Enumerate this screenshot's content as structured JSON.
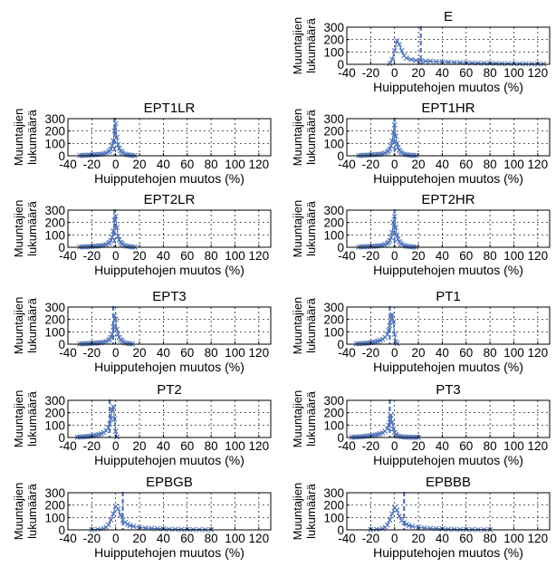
{
  "chart_data": [
    {
      "type": "line",
      "title": "E",
      "xlabel": "Huipputehojen muutos (%)",
      "ylabel_lines": [
        "Muuntajien",
        "lukumäärä"
      ],
      "xlim": [
        -40,
        130
      ],
      "ylim": [
        0,
        300
      ],
      "xticks": [
        -40,
        -20,
        0,
        20,
        40,
        60,
        80,
        100,
        120
      ],
      "yticks": [
        0,
        100,
        200,
        300
      ],
      "grid": true,
      "mean_line_x": 22,
      "series": [
        {
          "marker": "x",
          "x": [
            -4,
            -2,
            0,
            2,
            4,
            6,
            8,
            10,
            14,
            18,
            22,
            26,
            30,
            35,
            40,
            45,
            50,
            55,
            60,
            65,
            70,
            75,
            80,
            85,
            90,
            95,
            100,
            105,
            110,
            115,
            120,
            125
          ],
          "values": [
            5,
            40,
            110,
            190,
            160,
            110,
            70,
            50,
            38,
            32,
            28,
            25,
            25,
            22,
            20,
            18,
            16,
            14,
            12,
            11,
            10,
            9,
            8,
            7,
            6,
            6,
            5,
            5,
            4,
            4,
            3,
            3
          ]
        }
      ]
    },
    {
      "type": "line",
      "title": "EPT1LR",
      "xlabel": "Huipputehojen muutos (%)",
      "ylabel_lines": [
        "Muuntajien",
        "lukumäärä"
      ],
      "xlim": [
        -40,
        130
      ],
      "ylim": [
        0,
        300
      ],
      "xticks": [
        -40,
        -20,
        0,
        20,
        40,
        60,
        80,
        100,
        120
      ],
      "yticks": [
        0,
        100,
        200,
        300
      ],
      "grid": true,
      "mean_line_x": -1,
      "series": [
        {
          "marker": "x",
          "x": [
            -30,
            -28,
            -26,
            -24,
            -22,
            -20,
            -18,
            -16,
            -14,
            -12,
            -10,
            -8,
            -6,
            -5,
            -4,
            -3,
            -2,
            -1,
            0,
            1,
            2,
            3,
            4,
            5,
            6,
            8,
            10,
            12,
            14,
            16
          ],
          "values": [
            2,
            3,
            4,
            5,
            6,
            7,
            8,
            9,
            11,
            13,
            16,
            22,
            30,
            40,
            55,
            80,
            120,
            200,
            260,
            150,
            90,
            60,
            40,
            30,
            20,
            12,
            8,
            5,
            3,
            2
          ]
        }
      ]
    },
    {
      "type": "line",
      "title": "EPT1HR",
      "xlabel": "Huipputehojen muutos (%)",
      "ylabel_lines": [
        "Muuntajien",
        "lukumäärä"
      ],
      "xlim": [
        -40,
        130
      ],
      "ylim": [
        0,
        300
      ],
      "xticks": [
        -40,
        -20,
        0,
        20,
        40,
        60,
        80,
        100,
        120
      ],
      "yticks": [
        0,
        100,
        200,
        300
      ],
      "grid": true,
      "mean_line_x": 0,
      "series": [
        {
          "marker": "x",
          "x": [
            -30,
            -28,
            -26,
            -24,
            -22,
            -20,
            -18,
            -16,
            -14,
            -12,
            -10,
            -8,
            -6,
            -5,
            -4,
            -3,
            -2,
            -1,
            0,
            1,
            2,
            3,
            4,
            5,
            6,
            8,
            10,
            12,
            14,
            16,
            18
          ],
          "values": [
            2,
            3,
            4,
            5,
            6,
            7,
            8,
            9,
            11,
            13,
            16,
            22,
            30,
            40,
            55,
            80,
            120,
            190,
            250,
            160,
            100,
            65,
            45,
            32,
            22,
            14,
            9,
            6,
            4,
            3,
            2
          ]
        }
      ]
    },
    {
      "type": "line",
      "title": "EPT2LR",
      "xlabel": "Huipputehojen muutos (%)",
      "ylabel_lines": [
        "Muuntajien",
        "lukumäärä"
      ],
      "xlim": [
        -40,
        130
      ],
      "ylim": [
        0,
        300
      ],
      "xticks": [
        -40,
        -20,
        0,
        20,
        40,
        60,
        80,
        100,
        120
      ],
      "yticks": [
        0,
        100,
        200,
        300
      ],
      "grid": true,
      "mean_line_x": -1,
      "series": [
        {
          "marker": "x",
          "x": [
            -30,
            -28,
            -26,
            -24,
            -22,
            -20,
            -18,
            -16,
            -14,
            -12,
            -10,
            -8,
            -6,
            -5,
            -4,
            -3,
            -2,
            -1,
            0,
            1,
            2,
            3,
            4,
            5,
            6,
            8,
            10,
            12,
            14,
            16
          ],
          "values": [
            2,
            3,
            4,
            5,
            6,
            7,
            8,
            9,
            11,
            13,
            16,
            22,
            30,
            40,
            55,
            80,
            130,
            220,
            250,
            160,
            90,
            60,
            40,
            30,
            20,
            12,
            8,
            5,
            3,
            2
          ]
        }
      ]
    },
    {
      "type": "line",
      "title": "EPT2HR",
      "xlabel": "Huipputehojen muutos (%)",
      "ylabel_lines": [
        "Muuntajien",
        "lukumäärä"
      ],
      "xlim": [
        -40,
        130
      ],
      "ylim": [
        0,
        300
      ],
      "xticks": [
        -40,
        -20,
        0,
        20,
        40,
        60,
        80,
        100,
        120
      ],
      "yticks": [
        0,
        100,
        200,
        300
      ],
      "grid": true,
      "mean_line_x": 0,
      "series": [
        {
          "marker": "x",
          "x": [
            -30,
            -28,
            -26,
            -24,
            -22,
            -20,
            -18,
            -16,
            -14,
            -12,
            -10,
            -8,
            -6,
            -5,
            -4,
            -3,
            -2,
            -1,
            0,
            1,
            2,
            3,
            4,
            5,
            6,
            8,
            10,
            12,
            14,
            16,
            18
          ],
          "values": [
            2,
            3,
            4,
            5,
            6,
            7,
            8,
            9,
            11,
            13,
            16,
            22,
            30,
            40,
            55,
            80,
            120,
            200,
            250,
            160,
            100,
            65,
            45,
            32,
            22,
            14,
            9,
            6,
            4,
            3,
            2
          ]
        }
      ]
    },
    {
      "type": "line",
      "title": "EPT3",
      "xlabel": "Huipputehojen muutos (%)",
      "ylabel_lines": [
        "Muuntajien",
        "lukumäärä"
      ],
      "xlim": [
        -40,
        130
      ],
      "ylim": [
        0,
        300
      ],
      "xticks": [
        -40,
        -20,
        0,
        20,
        40,
        60,
        80,
        100,
        120
      ],
      "yticks": [
        0,
        100,
        200,
        300
      ],
      "grid": true,
      "mean_line_x": -2,
      "series": [
        {
          "marker": "x",
          "x": [
            -30,
            -28,
            -26,
            -24,
            -22,
            -20,
            -18,
            -16,
            -14,
            -12,
            -10,
            -8,
            -6,
            -5,
            -4,
            -3,
            -2,
            -1,
            0,
            1,
            2,
            3,
            4,
            5,
            6,
            8,
            10,
            12,
            14
          ],
          "values": [
            2,
            3,
            4,
            5,
            6,
            7,
            8,
            9,
            11,
            13,
            16,
            22,
            30,
            40,
            55,
            80,
            140,
            230,
            200,
            120,
            80,
            55,
            38,
            28,
            18,
            10,
            6,
            4,
            2
          ]
        }
      ]
    },
    {
      "type": "line",
      "title": "PT1",
      "xlabel": "Huipputehojen muutos (%)",
      "ylabel_lines": [
        "Muuntajien",
        "lukumäärä"
      ],
      "xlim": [
        -40,
        130
      ],
      "ylim": [
        0,
        300
      ],
      "xticks": [
        -40,
        -20,
        0,
        20,
        40,
        60,
        80,
        100,
        120
      ],
      "yticks": [
        0,
        100,
        200,
        300
      ],
      "grid": true,
      "mean_line_x": -4,
      "series": [
        {
          "marker": "x",
          "x": [
            -32,
            -30,
            -28,
            -26,
            -24,
            -22,
            -20,
            -18,
            -16,
            -14,
            -12,
            -10,
            -8,
            -6,
            -5,
            -4,
            -3,
            -2,
            -1,
            0,
            1,
            2
          ],
          "values": [
            3,
            4,
            5,
            6,
            8,
            10,
            12,
            15,
            19,
            24,
            30,
            40,
            55,
            80,
            110,
            150,
            200,
            240,
            180,
            80,
            20,
            5
          ]
        }
      ]
    },
    {
      "type": "line",
      "title": "PT2",
      "xlabel": "Huipputehojen muutos (%)",
      "ylabel_lines": [
        "Muuntajien",
        "lukumäärä"
      ],
      "xlim": [
        -40,
        130
      ],
      "ylim": [
        0,
        300
      ],
      "xticks": [
        -40,
        -20,
        0,
        20,
        40,
        60,
        80,
        100,
        120
      ],
      "yticks": [
        0,
        100,
        200,
        300
      ],
      "grid": true,
      "mean_line_x": -5,
      "series": [
        {
          "marker": "x",
          "x": [
            -32,
            -30,
            -28,
            -26,
            -24,
            -22,
            -20,
            -18,
            -16,
            -14,
            -12,
            -10,
            -8,
            -6,
            -5,
            -4,
            -3,
            -2,
            -1,
            0,
            1
          ],
          "values": [
            3,
            4,
            5,
            6,
            8,
            10,
            12,
            15,
            19,
            24,
            30,
            40,
            55,
            80,
            110,
            150,
            220,
            250,
            150,
            50,
            5
          ]
        }
      ]
    },
    {
      "type": "line",
      "title": "PT3",
      "xlabel": "Huipputehojen muutos (%)",
      "ylabel_lines": [
        "Muuntajien",
        "lukumäärä"
      ],
      "xlim": [
        -40,
        130
      ],
      "ylim": [
        0,
        300
      ],
      "xticks": [
        -40,
        -20,
        0,
        20,
        40,
        60,
        80,
        100,
        120
      ],
      "yticks": [
        0,
        100,
        200,
        300
      ],
      "grid": true,
      "mean_line_x": -4,
      "series": [
        {
          "marker": "x",
          "x": [
            -36,
            -34,
            -32,
            -30,
            -28,
            -26,
            -24,
            -22,
            -20,
            -18,
            -16,
            -14,
            -12,
            -10,
            -8,
            -6,
            -5,
            -4,
            -3,
            -2,
            -1,
            0,
            1,
            2,
            4,
            6,
            8,
            10,
            12,
            14,
            16,
            18,
            20
          ],
          "values": [
            2,
            3,
            4,
            5,
            6,
            8,
            10,
            12,
            14,
            17,
            20,
            24,
            30,
            38,
            50,
            70,
            100,
            150,
            180,
            120,
            70,
            40,
            25,
            15,
            10,
            6,
            4,
            3,
            2,
            2,
            1,
            1,
            1
          ]
        }
      ]
    },
    {
      "type": "line",
      "title": "EPBGB",
      "xlabel": "Huipputehojen muutos (%)",
      "ylabel_lines": [
        "Muuntajien",
        "lukumäärä"
      ],
      "xlim": [
        -40,
        130
      ],
      "ylim": [
        0,
        300
      ],
      "xticks": [
        -40,
        -20,
        0,
        20,
        40,
        60,
        80,
        100,
        120
      ],
      "yticks": [
        0,
        100,
        200,
        300
      ],
      "grid": true,
      "mean_line_x": 6,
      "series": [
        {
          "marker": "x",
          "x": [
            -20,
            -15,
            -10,
            -8,
            -6,
            -4,
            -2,
            0,
            2,
            4,
            6,
            8,
            10,
            12,
            15,
            20,
            25,
            30,
            35,
            40,
            45,
            50,
            55,
            60,
            65,
            70,
            75,
            80
          ],
          "values": [
            2,
            5,
            10,
            20,
            40,
            80,
            130,
            190,
            170,
            120,
            80,
            60,
            45,
            35,
            28,
            20,
            15,
            12,
            10,
            8,
            6,
            5,
            4,
            3,
            3,
            2,
            2,
            1
          ]
        }
      ]
    },
    {
      "type": "line",
      "title": "EPBBB",
      "xlabel": "Huipputehojen muutos (%)",
      "ylabel_lines": [
        "Muuntajien",
        "lukumäärä"
      ],
      "xlim": [
        -40,
        130
      ],
      "ylim": [
        0,
        300
      ],
      "xticks": [
        -40,
        -20,
        0,
        20,
        40,
        60,
        80,
        100,
        120
      ],
      "yticks": [
        0,
        100,
        200,
        300
      ],
      "grid": true,
      "mean_line_x": 8,
      "series": [
        {
          "marker": "x",
          "x": [
            -20,
            -15,
            -10,
            -8,
            -6,
            -4,
            -2,
            0,
            2,
            4,
            6,
            8,
            10,
            12,
            15,
            20,
            25,
            30,
            35,
            40,
            45,
            50,
            55,
            60,
            65,
            70,
            75,
            80
          ],
          "values": [
            2,
            5,
            10,
            20,
            40,
            80,
            130,
            180,
            160,
            110,
            75,
            58,
            45,
            35,
            28,
            20,
            15,
            12,
            10,
            8,
            6,
            5,
            4,
            3,
            3,
            2,
            2,
            1
          ]
        }
      ]
    }
  ]
}
